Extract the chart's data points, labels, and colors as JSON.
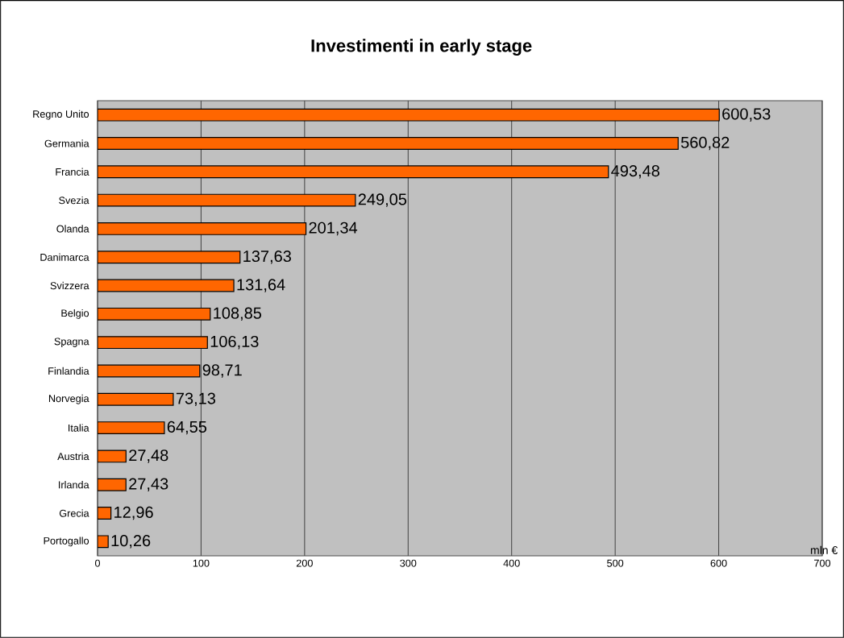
{
  "chart_data": {
    "type": "bar",
    "orientation": "horizontal",
    "title": "Investimenti in early stage",
    "xlabel": "mln €",
    "categories": [
      "Regno Unito",
      "Germania",
      "Francia",
      "Svezia",
      "Olanda",
      "Danimarca",
      "Svizzera",
      "Belgio",
      "Spagna",
      "Finlandia",
      "Norvegia",
      "Italia",
      "Austria",
      "Irlanda",
      "Grecia",
      "Portogallo"
    ],
    "values": [
      600.53,
      560.82,
      493.48,
      249.05,
      201.34,
      137.63,
      131.64,
      108.85,
      106.13,
      98.71,
      73.13,
      64.55,
      27.48,
      27.43,
      12.96,
      10.26
    ],
    "value_labels": [
      "600,53",
      "560,82",
      "493,48",
      "249,05",
      "201,34",
      "137,63",
      "131,64",
      "108,85",
      "106,13",
      "98,71",
      "73,13",
      "64,55",
      "27,48",
      "27,43",
      "12,96",
      "10,26"
    ],
    "color": "#ff6600",
    "xlim": [
      0,
      700
    ],
    "xticks": [
      0,
      100,
      200,
      300,
      400,
      500,
      600,
      700
    ],
    "grid": "x"
  }
}
